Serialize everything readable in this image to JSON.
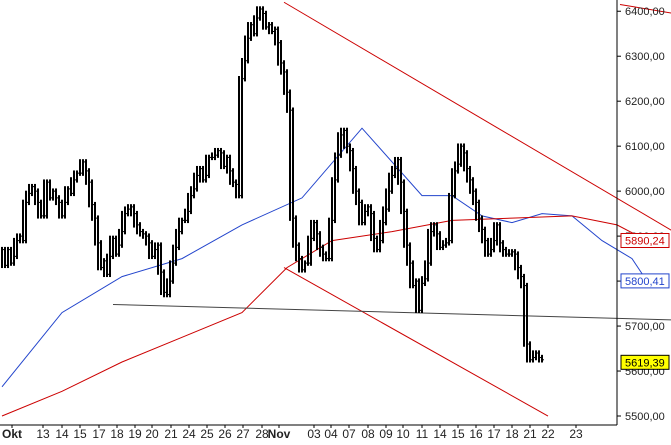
{
  "chart_data": {
    "type": "line",
    "style": "hlc-bars",
    "x_tick_labels": [
      "Okt",
      "13",
      "14",
      "15",
      "17",
      "18",
      "19",
      "20",
      "21",
      "24",
      "25",
      "26",
      "27",
      "28",
      "Nov",
      "03",
      "04",
      "07",
      "08",
      "09",
      "10",
      "11",
      "14",
      "15",
      "16",
      "17",
      "18",
      "21",
      "22",
      "23"
    ],
    "y_ticks": [
      5500,
      5600,
      5700,
      5800,
      5900,
      6000,
      6100,
      6200,
      6300,
      6400
    ],
    "y_tick_labels": [
      "5500,00",
      "5600,00",
      "5700,00",
      "5800,00",
      "5900,00",
      "6000,00",
      "6100,00",
      "6200,00",
      "6300,00",
      "6400,00"
    ],
    "ylim": [
      5480,
      6425
    ],
    "price_series": [
      5870,
      5835,
      5870,
      5840,
      5855,
      5890,
      5900,
      5890,
      5975,
      5995,
      6010,
      6000,
      5975,
      5945,
      5945,
      6020,
      5985,
      6000,
      5985,
      5975,
      5945,
      5975,
      6005,
      5995,
      6025,
      6040,
      6040,
      6065,
      6045,
      6020,
      5970,
      5940,
      5885,
      5830,
      5845,
      5815,
      5855,
      5895,
      5860,
      5880,
      5910,
      5950,
      5960,
      5965,
      5950,
      5925,
      5910,
      5905,
      5900,
      5885,
      5855,
      5870,
      5880,
      5820,
      5775,
      5770,
      5800,
      5840,
      5875,
      5910,
      5935,
      5935,
      5955,
      5990,
      6005,
      6035,
      6050,
      6025,
      6035,
      6075,
      6075,
      6080,
      6090,
      6085,
      6055,
      6075,
      6045,
      6020,
      6015,
      5990,
      6250,
      6290,
      6340,
      6370,
      6350,
      6385,
      6405,
      6395,
      6365,
      6370,
      6355,
      6360,
      6330,
      6285,
      6265,
      6220,
      6180,
      5940,
      5880,
      5850,
      5825,
      5840,
      5840,
      5895,
      5930,
      5905,
      5875,
      5860,
      5850,
      5850,
      5935,
      6025,
      6080,
      6125,
      6135,
      6100,
      6090,
      6050,
      6000,
      5975,
      5930,
      5955,
      5965,
      5950,
      5895,
      5870,
      5890,
      5930,
      5960,
      6000,
      6035,
      6050,
      6070,
      6020,
      5955,
      5880,
      5840,
      5790,
      5800,
      5735,
      5795,
      5805,
      5840,
      5910,
      5925,
      5905,
      5875,
      5880,
      5885,
      5890,
      5990,
      6045,
      6060,
      6100,
      6085,
      6050,
      6025,
      6000,
      5975,
      5940,
      5915,
      5890,
      5860,
      5870,
      5890,
      5925,
      5885,
      5870,
      5860,
      5860,
      5865,
      5860,
      5830,
      5810,
      5790,
      5660,
      5625,
      5630,
      5640,
      5630,
      5625
    ],
    "series": [
      {
        "color": "#2244cc",
        "x": [
          0,
          20,
          40,
          60,
          80,
          100,
          120,
          140,
          150,
          160,
          170,
          180,
          190,
          200,
          210,
          215
        ],
        "values": [
          5565,
          5730,
          5810,
          5850,
          5925,
          5985,
          6140,
          5990,
          5990,
          5945,
          5930,
          5950,
          5945,
          5890,
          5850,
          5800
        ]
      },
      {
        "color": "#cc0000",
        "x": [
          0,
          20,
          40,
          60,
          80,
          95,
          110,
          130,
          150,
          170,
          190,
          205,
          215
        ],
        "values": [
          5500,
          5555,
          5620,
          5675,
          5730,
          5830,
          5890,
          5910,
          5935,
          5940,
          5945,
          5925,
          5890
        ]
      }
    ],
    "trendlines": [
      {
        "color": "#cc0000",
        "x1": 94,
        "y1": 6420,
        "x2": 243,
        "y2": 5835
      },
      {
        "color": "#cc0000",
        "x1": 94,
        "y1": 5830,
        "x2": 182,
        "y2": 5500
      },
      {
        "color": "#cc0000",
        "x1": 206,
        "y1": 6415,
        "x2": 242,
        "y2": 6375
      },
      {
        "color": "#444444",
        "x1": 37,
        "y1": 5748,
        "x2": 243,
        "y2": 5710
      }
    ],
    "price_tags": [
      {
        "text": "5890,24",
        "value": 5890.24,
        "bg": "#ffffff",
        "border": "#cc0000",
        "color": "#cc0000"
      },
      {
        "text": "5800,41",
        "value": 5800.41,
        "bg": "#ffffff",
        "border": "#2244cc",
        "color": "#2244cc"
      },
      {
        "text": "5619,39",
        "value": 5619.39,
        "bg": "#ffff00",
        "border": "#000000",
        "color": "#000000"
      }
    ],
    "grid": false,
    "legend": "none"
  }
}
